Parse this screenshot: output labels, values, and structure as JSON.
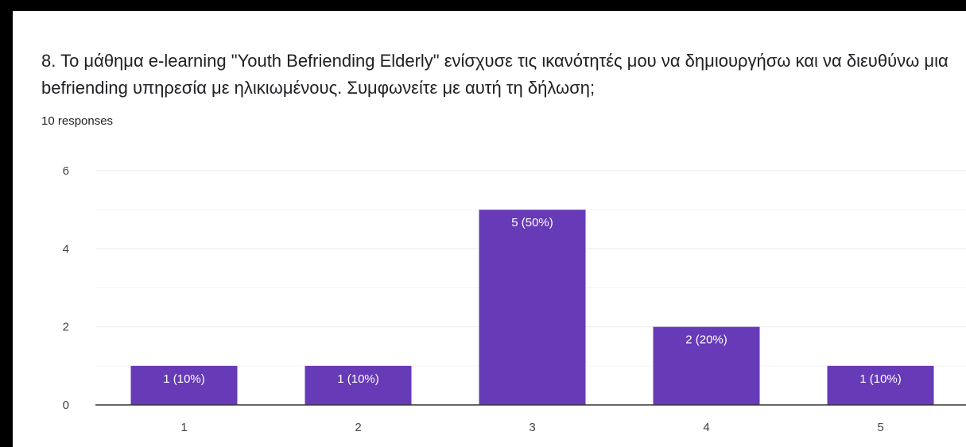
{
  "question": {
    "title": "8. Το μάθημα e-learning \"Youth Befriending Elderly\" ενίσχυσε τις ικανότητές μου να δημιουργήσω και να διευθύνω μια befriending υπηρεσία με ηλικιωμένους. Συμφωνείτε με αυτή τη δήλωση;",
    "responses": "10 responses"
  },
  "colors": {
    "bar": "#673ab7",
    "grid": "#ececec",
    "axis": "#333333"
  },
  "chart_data": {
    "type": "bar",
    "categories": [
      "1",
      "2",
      "3",
      "4",
      "5"
    ],
    "values": [
      1,
      1,
      5,
      2,
      1
    ],
    "data_labels": [
      "1 (10%)",
      "1 (10%)",
      "5 (50%)",
      "2 (20%)",
      "1 (10%)"
    ],
    "ylim": [
      0,
      6
    ],
    "yticks": [
      0,
      2,
      4,
      6
    ],
    "minor_gridlines": [
      1,
      3,
      5
    ],
    "grid": true,
    "legend": "none"
  }
}
